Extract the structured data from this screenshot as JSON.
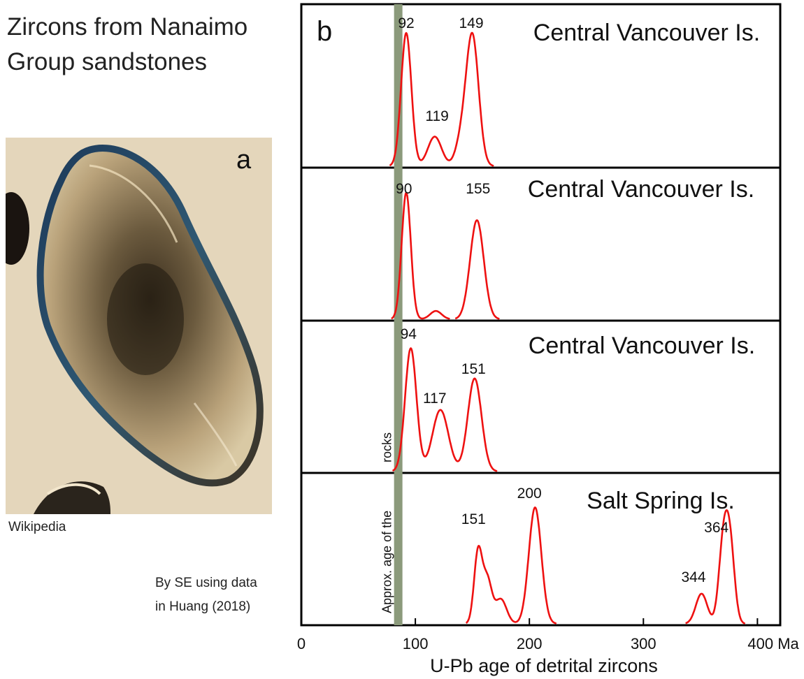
{
  "title_line1": "Zircons from Nanaimo",
  "title_line2": "Group sandstones",
  "photo": {
    "label": "a",
    "caption": "Wikipedia",
    "icon": "zircon-crystal-photo"
  },
  "credit_line1": "By SE using data",
  "credit_line2": "in Huang (2018)",
  "colors": {
    "curve": "#ee1111",
    "band": "#8b9a7b",
    "photo_bg": "#e4d6bb"
  },
  "chart_data": {
    "type": "line",
    "panel_label": "b",
    "xlabel": "U-Pb age of detrital zircons",
    "xlim": [
      0,
      420
    ],
    "xticks": [
      0,
      100,
      200,
      300,
      400
    ],
    "xtick_labels": [
      "0",
      "100",
      "200",
      "300",
      "400 Ma"
    ],
    "band": {
      "x": 85,
      "label": "Approx. age of the rocks",
      "label_line1": "Approx. age of the",
      "label_line2": "rocks"
    },
    "panels": [
      {
        "name": "Central Vancouver Is.",
        "peaks": [
          92,
          119,
          149
        ],
        "components": [
          {
            "mu": 92,
            "sigma": 4.5,
            "amp": 0.9
          },
          {
            "mu": 117,
            "sigma": 6,
            "amp": 0.2
          },
          {
            "mu": 140,
            "sigma": 5,
            "amp": 0.15
          },
          {
            "mu": 150,
            "sigma": 5.5,
            "amp": 0.88
          }
        ]
      },
      {
        "name": "Central Vancouver Is.",
        "peaks": [
          90,
          155
        ],
        "components": [
          {
            "mu": 92,
            "sigma": 4,
            "amp": 0.92
          },
          {
            "mu": 118,
            "sigma": 5,
            "amp": 0.06
          },
          {
            "mu": 154,
            "sigma": 6,
            "amp": 0.72
          }
        ]
      },
      {
        "name": "Central Vancouver Is.",
        "peaks": [
          94,
          117,
          151
        ],
        "components": [
          {
            "mu": 96,
            "sigma": 5,
            "amp": 0.9
          },
          {
            "mu": 122,
            "sigma": 7,
            "amp": 0.45
          },
          {
            "mu": 152,
            "sigma": 6,
            "amp": 0.68
          }
        ]
      },
      {
        "name": "Salt Spring Is.",
        "peaks": [
          151,
          200,
          344,
          364
        ],
        "components": [
          {
            "mu": 155,
            "sigma": 3.5,
            "amp": 0.52
          },
          {
            "mu": 163,
            "sigma": 4,
            "amp": 0.32
          },
          {
            "mu": 175,
            "sigma": 5,
            "amp": 0.18
          },
          {
            "mu": 205,
            "sigma": 5.5,
            "amp": 0.85
          },
          {
            "mu": 351,
            "sigma": 5,
            "amp": 0.22
          },
          {
            "mu": 370,
            "sigma": 4,
            "amp": 0.55
          },
          {
            "mu": 376,
            "sigma": 4,
            "amp": 0.55
          }
        ]
      }
    ]
  }
}
